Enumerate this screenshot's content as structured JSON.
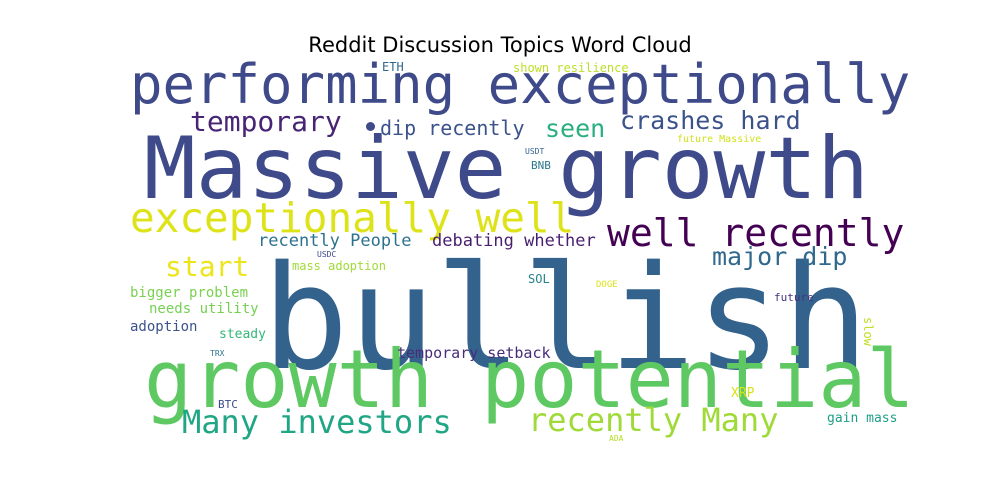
{
  "title": "Reddit Discussion Topics Word Cloud",
  "words": [
    {
      "text": "bullish",
      "color": "#33638d"
    },
    {
      "text": "Massive growth",
      "color": "#3e4a89"
    },
    {
      "text": "growth potential",
      "color": "#5ec962"
    },
    {
      "text": "performing exceptionally",
      "color": "#3e4a89"
    },
    {
      "text": "exceptionally well",
      "color": "#dde318"
    },
    {
      "text": "well recently",
      "color": "#440154"
    },
    {
      "text": "Many investors",
      "color": "#21a685"
    },
    {
      "text": "recently Many",
      "color": "#a0da39"
    },
    {
      "text": "temporary",
      "color": "#482475"
    },
    {
      "text": "crashes hard",
      "color": "#3b528b"
    },
    {
      "text": "major dip",
      "color": "#31688e"
    },
    {
      "text": "seen",
      "color": "#29af7f"
    },
    {
      "text": "start",
      "color": "#ece51b"
    },
    {
      "text": "dip recently",
      "color": "#3b528b"
    },
    {
      "text": "recently People",
      "color": "#2c728e"
    },
    {
      "text": "debating whether",
      "color": "#481f70"
    },
    {
      "text": "temporary setback",
      "color": "#472c7a"
    },
    {
      "text": "bigger problem",
      "color": "#7ad151"
    },
    {
      "text": "needs utility",
      "color": "#75d054"
    },
    {
      "text": "adoption",
      "color": "#3b528b"
    },
    {
      "text": "steady",
      "color": "#35b779"
    },
    {
      "text": "mass adoption",
      "color": "#a0da39"
    },
    {
      "text": "shown resilience",
      "color": "#bddf26"
    },
    {
      "text": "ETH",
      "color": "#31688e"
    },
    {
      "text": "SOL",
      "color": "#26828e"
    },
    {
      "text": "BNB",
      "color": "#2a788e"
    },
    {
      "text": "XRP",
      "color": "#d8e219"
    },
    {
      "text": "BTC",
      "color": "#3e4a89"
    },
    {
      "text": "future",
      "color": "#46327e"
    },
    {
      "text": "gain mass",
      "color": "#1f9e89"
    },
    {
      "text": "slow",
      "color": "#bddf26"
    },
    {
      "text": "DOGE",
      "color": "#dde318"
    },
    {
      "text": "future Massive",
      "color": "#d0e11c"
    },
    {
      "text": "USDT",
      "color": "#355f8d"
    },
    {
      "text": "USDC",
      "color": "#3e4989"
    },
    {
      "text": "TRX",
      "color": "#2c728e"
    },
    {
      "text": "ADA",
      "color": "#b5de2b"
    },
    {
      "text": "dot",
      "color": "#3e4a89"
    }
  ]
}
